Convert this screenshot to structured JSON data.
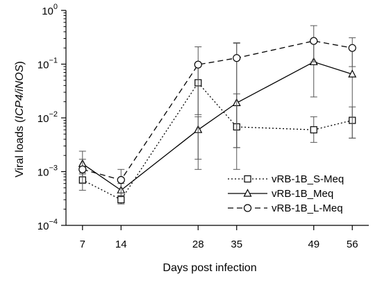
{
  "chart_data": {
    "type": "line",
    "xlabel": "Days post infection",
    "ylabel_prefix": "Viral loads (",
    "ylabel_italic": "ICP4/iNOS",
    "ylabel_suffix": ")",
    "y_scale": "log",
    "ylim": [
      0.0001,
      1
    ],
    "xlim": [
      4,
      59
    ],
    "x_ticks": [
      7,
      14,
      28,
      35,
      49,
      56
    ],
    "y_ticks": [
      {
        "value": 0.0001,
        "base": "10",
        "exp": "−4"
      },
      {
        "value": 0.001,
        "base": "10",
        "exp": "−3"
      },
      {
        "value": 0.01,
        "base": "10",
        "exp": "−2"
      },
      {
        "value": 0.1,
        "base": "10",
        "exp": "−1"
      },
      {
        "value": 1,
        "base": "10",
        "exp": "0"
      }
    ],
    "legend_position": "lower-right",
    "series": [
      {
        "name": "vRB-1B_S-Meq",
        "marker": "square",
        "line_style": "dotted",
        "x": [
          7,
          14,
          28,
          35,
          49,
          56
        ],
        "y": [
          0.0007,
          0.0003,
          0.045,
          0.0068,
          0.006,
          0.009
        ],
        "err_low": [
          0.00045,
          0.00025,
          0.0115,
          0.0028,
          0.0035,
          0.0042
        ],
        "err_high": [
          0.00095,
          0.00036,
          0.095,
          0.028,
          0.0105,
          0.016
        ]
      },
      {
        "name": "vRB-1B_Meq",
        "marker": "triangle",
        "line_style": "solid",
        "x": [
          7,
          14,
          28,
          35,
          49,
          56
        ],
        "y": [
          0.0014,
          0.00045,
          0.006,
          0.019,
          0.11,
          0.065
        ],
        "err_low": [
          0.0009,
          0.00035,
          0.0017,
          0.0011,
          0.0245,
          0.0042
        ],
        "err_high": [
          0.0024,
          0.0006,
          0.0105,
          0.25,
          0.27,
          0.21
        ]
      },
      {
        "name": "vRB-1B_L-Meq",
        "marker": "circle",
        "line_style": "dashed",
        "x": [
          7,
          14,
          28,
          35,
          49,
          56
        ],
        "y": [
          0.0011,
          0.0007,
          0.098,
          0.13,
          0.27,
          0.2
        ],
        "err_low": [
          0.0006,
          0.0004,
          0.0011,
          0.0028,
          0.11,
          0.09
        ],
        "err_high": [
          0.0017,
          0.0011,
          0.21,
          0.245,
          0.52,
          0.31
        ]
      }
    ]
  }
}
